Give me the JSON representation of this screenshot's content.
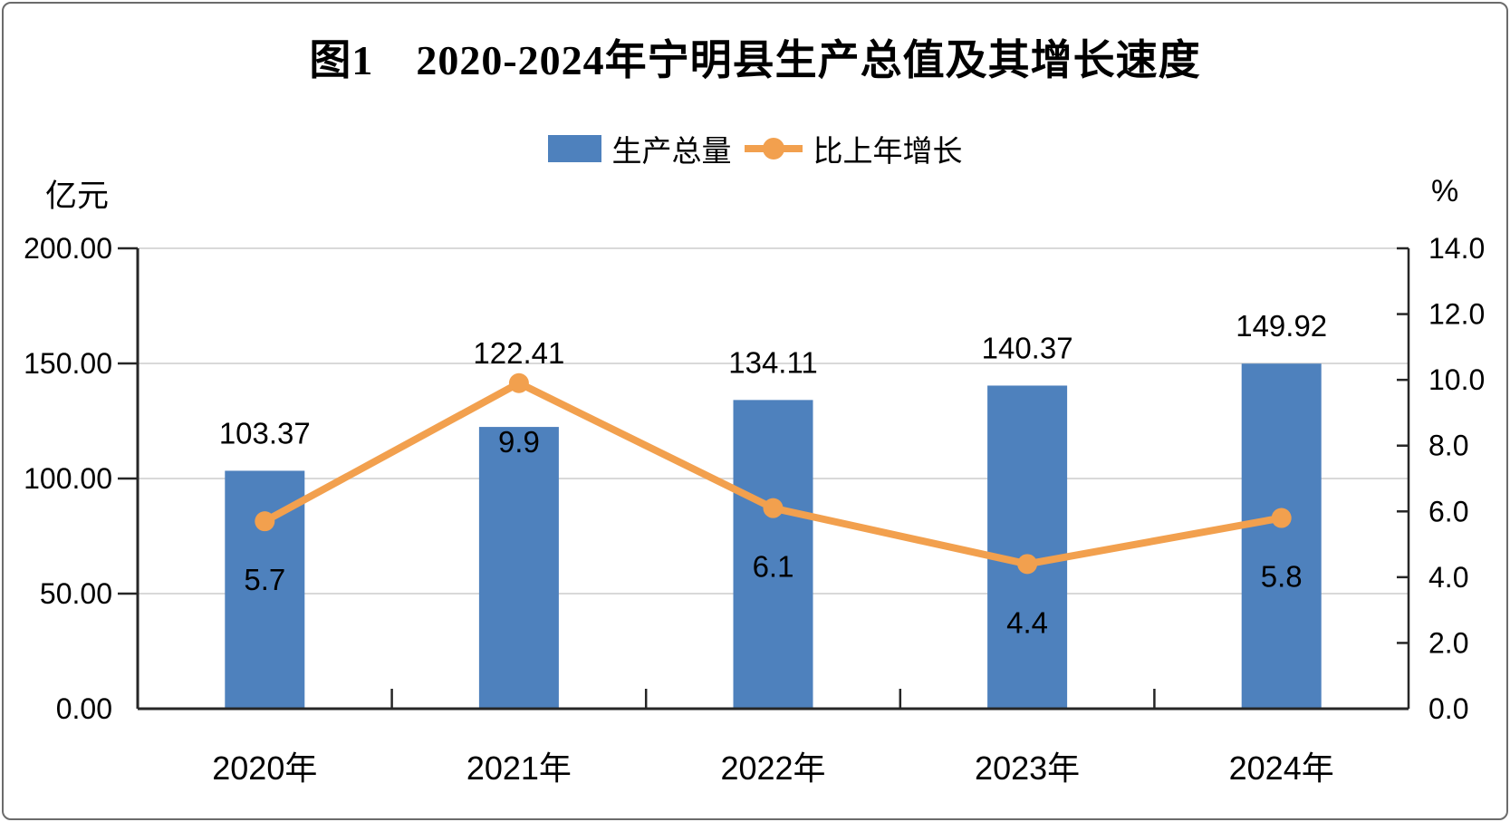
{
  "chart": {
    "title": "图1　2020-2024年宁明县生产总值及其增长速度",
    "legend": {
      "bar_label": "生产总量",
      "line_label": "比上年增长"
    }
  },
  "chart_data": {
    "type": "bar+line",
    "title": "图1 2020-2024年宁明县生产总值及其增长速度",
    "categories": [
      "2020年",
      "2021年",
      "2022年",
      "2023年",
      "2024年"
    ],
    "series": [
      {
        "name": "生产总量",
        "type": "bar",
        "axis": "left",
        "values": [
          103.37,
          122.41,
          134.11,
          140.37,
          149.92
        ],
        "color": "#4E81BD"
      },
      {
        "name": "比上年增长",
        "type": "line",
        "axis": "right",
        "values": [
          5.7,
          9.9,
          6.1,
          4.4,
          5.8
        ],
        "color": "#F2A04E"
      }
    ],
    "left_axis": {
      "title": "亿元",
      "min": 0,
      "max": 200,
      "tick_step": 50,
      "tick_labels": [
        "0.00",
        "50.00",
        "100.00",
        "150.00",
        "200.00"
      ]
    },
    "right_axis": {
      "title": "%",
      "min": 0,
      "max": 14,
      "tick_step": 2,
      "tick_labels": [
        "0.0",
        "2.0",
        "4.0",
        "6.0",
        "8.0",
        "10.0",
        "12.0",
        "14.0"
      ]
    },
    "grid": true,
    "legend_position": "top",
    "colors": {
      "bar": "#4E81BD",
      "line": "#F2A04E",
      "grid": "#D9D9D9",
      "axis": "#262626",
      "text": "#000000"
    }
  }
}
